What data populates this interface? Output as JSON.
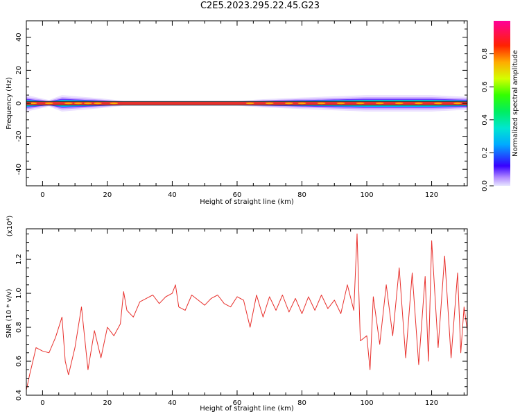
{
  "title": "C2E5.2023.295.22.45.G23",
  "chart_data": [
    {
      "type": "heatmap",
      "xlabel": "Height of straight line (km)",
      "ylabel": "Frequency (Hz)",
      "xlim": [
        -5,
        131
      ],
      "ylim": [
        -50,
        50
      ],
      "x_ticks": [
        "0",
        "20",
        "40",
        "60",
        "80",
        "100",
        "120"
      ],
      "y_ticks": [
        "-40",
        "-20",
        "0",
        "20",
        "40"
      ],
      "colorbar": {
        "label": "Normalized spectral amplitude",
        "range": [
          0,
          1
        ],
        "ticks": [
          "0.0",
          "0.2",
          "0.4",
          "0.6",
          "0.8"
        ]
      },
      "band": {
        "center_freq": 0,
        "core_halfwidth_hz": 1,
        "spread_profile": [
          {
            "x": -5,
            "halfwidth": 5
          },
          {
            "x": 2,
            "halfwidth": 2
          },
          {
            "x": 6,
            "halfwidth": 5
          },
          {
            "x": 12,
            "halfwidth": 4
          },
          {
            "x": 18,
            "halfwidth": 3
          },
          {
            "x": 25,
            "halfwidth": 1.5
          },
          {
            "x": 60,
            "halfwidth": 1.5
          },
          {
            "x": 68,
            "halfwidth": 2.5
          },
          {
            "x": 80,
            "halfwidth": 3.5
          },
          {
            "x": 100,
            "halfwidth": 5
          },
          {
            "x": 120,
            "halfwidth": 5
          },
          {
            "x": 130,
            "halfwidth": 4
          }
        ]
      },
      "grid": false
    },
    {
      "type": "line",
      "xlabel": "Height of straight line (km)",
      "ylabel": "SNR (10 * v/v)",
      "y_multiplier_label": "(x10⁴)",
      "xlim": [
        -5,
        131
      ],
      "ylim": [
        0.4,
        1.38
      ],
      "x_ticks": [
        "0",
        "20",
        "40",
        "60",
        "80",
        "100",
        "120"
      ],
      "y_ticks": [
        "0.4",
        "0.6",
        "0.8",
        "1.0",
        "1.2"
      ],
      "series_color": "#e8302c",
      "series": [
        {
          "x": [
            -5,
            -4,
            -3,
            -2,
            0,
            2,
            4,
            6,
            7,
            8,
            10,
            12,
            14,
            16,
            18,
            20,
            22,
            24,
            25,
            26,
            28,
            30,
            32,
            34,
            36,
            38,
            40,
            41,
            42,
            44,
            46,
            48,
            50,
            52,
            54,
            56,
            58,
            60,
            62,
            64,
            66,
            68,
            70,
            72,
            74,
            76,
            78,
            80,
            82,
            84,
            86,
            88,
            90,
            92,
            94,
            96,
            97,
            98,
            100,
            101,
            102,
            104,
            106,
            108,
            110,
            112,
            114,
            116,
            118,
            119,
            120,
            122,
            124,
            126,
            128,
            129,
            130,
            131
          ],
          "y": [
            0.43,
            0.52,
            0.6,
            0.68,
            0.66,
            0.65,
            0.74,
            0.86,
            0.6,
            0.52,
            0.68,
            0.92,
            0.55,
            0.78,
            0.62,
            0.8,
            0.75,
            0.82,
            1.01,
            0.9,
            0.86,
            0.95,
            0.97,
            0.99,
            0.94,
            0.98,
            1.0,
            1.05,
            0.92,
            0.9,
            0.99,
            0.96,
            0.93,
            0.97,
            0.99,
            0.94,
            0.92,
            0.98,
            0.96,
            0.8,
            0.99,
            0.86,
            0.98,
            0.9,
            0.99,
            0.89,
            0.97,
            0.88,
            0.98,
            0.9,
            0.99,
            0.91,
            0.96,
            0.88,
            1.05,
            0.9,
            1.35,
            0.72,
            0.75,
            0.55,
            0.98,
            0.7,
            1.05,
            0.75,
            1.15,
            0.62,
            1.12,
            0.58,
            1.1,
            0.6,
            1.31,
            0.68,
            1.22,
            0.62,
            1.12,
            0.65,
            0.92,
            0.78
          ]
        }
      ],
      "grid": false
    }
  ]
}
